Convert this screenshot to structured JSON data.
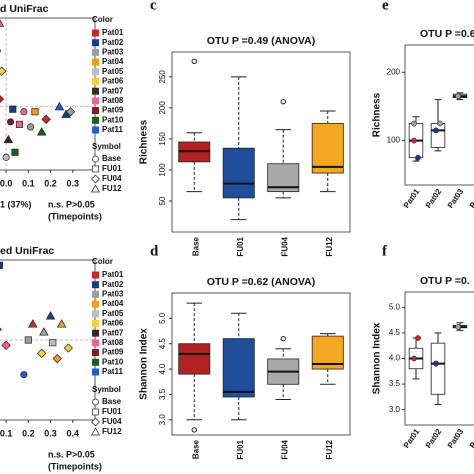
{
  "chart_data": [
    {
      "type": "scatter",
      "title": "d UniFrac",
      "xlabel": "1 (37%)",
      "annotations": [
        "n.s. P>0.05",
        "(Timepoints)"
      ],
      "xlim": [
        -0.05,
        0.4
      ],
      "ylim": [
        -0.25,
        0.35
      ],
      "xticks": [
        {
          "value": 0,
          "label": "0.0"
        },
        0.1,
        0.2,
        0.3
      ],
      "reference_lines": true,
      "color_legend": {
        "title": "Color",
        "entries": [
          {
            "name": "Pat01",
            "color": "#c62828"
          },
          {
            "name": "Pat02",
            "color": "#1a3a8f"
          },
          {
            "name": "Pat03",
            "color": "#9e9e9e"
          },
          {
            "name": "Pat04",
            "color": "#f39c12"
          },
          {
            "name": "Pat05",
            "color": "#bdbdbd"
          },
          {
            "name": "Pat06",
            "color": "#f4d03f"
          },
          {
            "name": "Pat07",
            "color": "#3e2723"
          },
          {
            "name": "Pat08",
            "color": "#f06292"
          },
          {
            "name": "Pat09",
            "color": "#7b1f1f"
          },
          {
            "name": "Pat10",
            "color": "#1b5e20"
          },
          {
            "name": "Pat11",
            "color": "#1e5fd8"
          }
        ]
      },
      "symbol_legend": {
        "title": "Symbol",
        "entries": [
          {
            "name": "Base",
            "symbol": "circle"
          },
          {
            "name": "FU01",
            "symbol": "square"
          },
          {
            "name": "FU04",
            "symbol": "diamond"
          },
          {
            "name": "FU12",
            "symbol": "triangle"
          }
        ]
      },
      "points": [
        {
          "x": -0.03,
          "y": 0.33,
          "color": "#f06292",
          "symbol": "triangle"
        },
        {
          "x": -0.04,
          "y": 0.22,
          "color": "#1e5fd8",
          "symbol": "circle"
        },
        {
          "x": -0.02,
          "y": 0.14,
          "color": "#f4d03f",
          "symbol": "diamond"
        },
        {
          "x": -0.03,
          "y": 0.03,
          "color": "#c62828",
          "symbol": "diamond"
        },
        {
          "x": 0.03,
          "y": -0.01,
          "color": "#1a3a8f",
          "symbol": "square"
        },
        {
          "x": 0.08,
          "y": -0.02,
          "color": "#f06292",
          "symbol": "circle"
        },
        {
          "x": 0.13,
          "y": -0.02,
          "color": "#f39c12",
          "symbol": "square"
        },
        {
          "x": 0.24,
          "y": 0.0,
          "color": "#1e5fd8",
          "symbol": "triangle"
        },
        {
          "x": 0.27,
          "y": -0.03,
          "color": "#1a3a8f",
          "symbol": "triangle"
        },
        {
          "x": 0.29,
          "y": -0.02,
          "color": "#9e9e9e",
          "symbol": "diamond"
        },
        {
          "x": 0.18,
          "y": -0.05,
          "color": "#c62828",
          "symbol": "diamond"
        },
        {
          "x": 0.02,
          "y": -0.06,
          "color": "#7b1f1f",
          "symbol": "circle"
        },
        {
          "x": 0.06,
          "y": -0.07,
          "color": "#f06292",
          "symbol": "square"
        },
        {
          "x": 0.11,
          "y": -0.08,
          "color": "#9e9e9e",
          "symbol": "circle"
        },
        {
          "x": 0.16,
          "y": -0.1,
          "color": "#1b5e20",
          "symbol": "triangle"
        },
        {
          "x": 0.01,
          "y": -0.13,
          "color": "#3e2723",
          "symbol": "triangle"
        },
        {
          "x": 0.04,
          "y": -0.18,
          "color": "#1b5e20",
          "symbol": "square"
        },
        {
          "x": 0.0,
          "y": -0.2,
          "color": "#bdbdbd",
          "symbol": "circle"
        }
      ]
    },
    {
      "type": "scatter",
      "title": "ed UniFrac",
      "annotations": [
        "n.s. P>0.05",
        "(Timepoints)"
      ],
      "xlim": [
        0.05,
        0.5
      ],
      "ylim": [
        -0.3,
        0.3
      ],
      "xticks": [
        0.1,
        0.2,
        0.3,
        0.4
      ],
      "reference_lines": true,
      "color_legend": {
        "title": "Color",
        "entries": [
          {
            "name": "Pat01",
            "color": "#c62828"
          },
          {
            "name": "Pat02",
            "color": "#1a3a8f"
          },
          {
            "name": "Pat03",
            "color": "#9e9e9e"
          },
          {
            "name": "Pat04",
            "color": "#f39c12"
          },
          {
            "name": "Pat05",
            "color": "#bdbdbd"
          },
          {
            "name": "Pat06",
            "color": "#f4d03f"
          },
          {
            "name": "Pat07",
            "color": "#3e2723"
          },
          {
            "name": "Pat08",
            "color": "#f06292"
          },
          {
            "name": "Pat09",
            "color": "#7b1f1f"
          },
          {
            "name": "Pat10",
            "color": "#1b5e20"
          },
          {
            "name": "Pat11",
            "color": "#1e5fd8"
          }
        ]
      },
      "symbol_legend": {
        "title": "Symbol",
        "entries": [
          {
            "name": "Base",
            "symbol": "circle"
          },
          {
            "name": "FU01",
            "symbol": "square"
          },
          {
            "name": "FU04",
            "symbol": "diamond"
          },
          {
            "name": "FU12",
            "symbol": "triangle"
          }
        ]
      },
      "points": [
        {
          "x": 0.07,
          "y": 0.28,
          "color": "#1a3a8f",
          "symbol": "square"
        },
        {
          "x": 0.3,
          "y": 0.09,
          "color": "#1a3a8f",
          "symbol": "triangle"
        },
        {
          "x": 0.22,
          "y": 0.06,
          "color": "#c62828",
          "symbol": "triangle"
        },
        {
          "x": 0.35,
          "y": 0.06,
          "color": "#f39c12",
          "symbol": "triangle"
        },
        {
          "x": 0.06,
          "y": 0.04,
          "color": "#c62828",
          "symbol": "diamond"
        },
        {
          "x": 0.27,
          "y": 0.03,
          "color": "#9e9e9e",
          "symbol": "triangle"
        },
        {
          "x": 0.2,
          "y": 0.0,
          "color": "#9e9e9e",
          "symbol": "square"
        },
        {
          "x": 0.31,
          "y": -0.01,
          "color": "#bdbdbd",
          "symbol": "square"
        },
        {
          "x": 0.38,
          "y": -0.03,
          "color": "#f4d03f",
          "symbol": "diamond"
        },
        {
          "x": 0.26,
          "y": -0.05,
          "color": "#f4d03f",
          "symbol": "diamond"
        },
        {
          "x": 0.1,
          "y": -0.02,
          "color": "#f06292",
          "symbol": "diamond"
        },
        {
          "x": 0.33,
          "y": -0.07,
          "color": "#f39c12",
          "symbol": "diamond"
        },
        {
          "x": 0.18,
          "y": -0.13,
          "color": "#1e5fd8",
          "symbol": "circle"
        }
      ]
    },
    {
      "type": "boxplot",
      "label": "c",
      "title": "OTU P =0.49 (ANOVA)",
      "ylabel": "Richness",
      "categories": [
        "Base",
        "FU01",
        "FU04",
        "FU12"
      ],
      "ylim": [
        0,
        290
      ],
      "yticks": [
        50,
        100,
        150,
        200,
        250
      ],
      "boxes": [
        {
          "min": 65,
          "q1": 113,
          "median": 130,
          "q3": 145,
          "max": 160,
          "outliers": [
            275
          ],
          "color": "#b22222"
        },
        {
          "min": 20,
          "q1": 55,
          "median": 78,
          "q3": 135,
          "max": 250,
          "outliers": [],
          "color": "#1f4e9c"
        },
        {
          "min": 55,
          "q1": 65,
          "median": 72,
          "q3": 110,
          "max": 165,
          "outliers": [
            210
          ],
          "color": "#a9a9a9"
        },
        {
          "min": 65,
          "q1": 95,
          "median": 105,
          "q3": 175,
          "max": 195,
          "outliers": [],
          "color": "#f5a623"
        }
      ]
    },
    {
      "type": "boxplot",
      "label": "d",
      "title": "OTU P =0.62 (ANOVA)",
      "ylabel": "Shannon Index",
      "categories": [
        "Base",
        "FU01",
        "FU04",
        "FU12"
      ],
      "ylim": [
        2.7,
        5.5
      ],
      "yticks": [
        {
          "value": 3,
          "label": "3.0"
        },
        3.5,
        {
          "value": 4,
          "label": "4.0"
        },
        4.5,
        {
          "value": 5,
          "label": "5.0"
        }
      ],
      "boxes": [
        {
          "min": 3.0,
          "q1": 3.9,
          "median": 4.3,
          "q3": 4.5,
          "max": 5.3,
          "outliers": [
            2.8
          ],
          "color": "#b22222"
        },
        {
          "min": 3.0,
          "q1": 3.45,
          "median": 3.55,
          "q3": 4.6,
          "max": 5.1,
          "outliers": [],
          "color": "#1f4e9c"
        },
        {
          "min": 3.4,
          "q1": 3.7,
          "median": 3.95,
          "q3": 4.2,
          "max": 4.4,
          "outliers": [
            4.6
          ],
          "color": "#a9a9a9"
        },
        {
          "min": 3.7,
          "q1": 4.0,
          "median": 4.1,
          "q3": 4.65,
          "max": 4.7,
          "outliers": [],
          "color": "#f5a623"
        }
      ]
    },
    {
      "type": "boxplot",
      "label": "e",
      "title": "OTU P =0.6",
      "ylabel": "Richness",
      "categories": [
        "Pat01",
        "Pat02",
        "Pat03",
        "Pat04"
      ],
      "ylim": [
        35,
        240
      ],
      "yticks": [
        100,
        200
      ],
      "boxes": [
        {
          "min": 70,
          "q1": 75,
          "median": 100,
          "q3": 125,
          "max": 135,
          "outliers": [],
          "color": "#ffffff",
          "points": [
            {
              "value": 100,
              "color": "#c62828"
            },
            {
              "value": 75,
              "color": "#1a3a8f"
            },
            {
              "value": 125,
              "color": "#9e9e9e"
            }
          ]
        },
        {
          "min": 85,
          "q1": 90,
          "median": 115,
          "q3": 125,
          "max": 160,
          "outliers": [],
          "color": "#ffffff",
          "points": [
            {
              "value": 115,
              "color": "#1a3a8f"
            },
            {
              "value": 125,
              "color": "#9e9e9e"
            }
          ]
        },
        {
          "min": 160,
          "q1": 163,
          "median": 165,
          "q3": 168,
          "max": 170,
          "outliers": [],
          "color": "#e0e0e0",
          "points": [
            {
              "value": 165,
              "color": "#9e9e9e"
            }
          ]
        },
        {
          "min": 60,
          "q1": 75,
          "median": 85,
          "q3": 110,
          "max": 120,
          "outliers": [],
          "color": "#ffffff",
          "points": [
            {
              "value": 85,
              "color": "#f39c12"
            },
            {
              "value": 110,
              "color": "#f39c12"
            }
          ]
        }
      ]
    },
    {
      "type": "boxplot",
      "label": "f",
      "title": "OTU P =0.",
      "ylabel": "Shannon Index",
      "categories": [
        "Pat01",
        "Pat02",
        "Pat03",
        "Pat04"
      ],
      "ylim": [
        2.7,
        5.3
      ],
      "yticks": [
        {
          "value": 3,
          "label": "3.0"
        },
        3.5,
        {
          "value": 4,
          "label": "4.0"
        },
        4.5,
        {
          "value": 5,
          "label": "5.0"
        }
      ],
      "boxes": [
        {
          "min": 3.6,
          "q1": 3.8,
          "median": 4.0,
          "q3": 4.2,
          "max": 4.4,
          "outliers": [],
          "color": "#ffffff",
          "points": [
            {
              "value": 4.0,
              "color": "#c62828"
            },
            {
              "value": 4.4,
              "color": "#c62828"
            }
          ]
        },
        {
          "min": 3.1,
          "q1": 3.3,
          "median": 3.9,
          "q3": 4.3,
          "max": 4.5,
          "outliers": [],
          "color": "#ffffff",
          "points": [
            {
              "value": 3.9,
              "color": "#1a3a8f"
            }
          ]
        },
        {
          "min": 4.55,
          "q1": 4.6,
          "median": 4.62,
          "q3": 4.65,
          "max": 4.7,
          "outliers": [],
          "color": "#e0e0e0",
          "points": [
            {
              "value": 4.62,
              "color": "#9e9e9e"
            }
          ]
        },
        {
          "min": 3.5,
          "q1": 3.7,
          "median": 4.0,
          "q3": 4.3,
          "max": 4.5,
          "outliers": [],
          "color": "#ffffff",
          "points": [
            {
              "value": 3.7,
              "color": "#f39c12"
            },
            {
              "value": 4.3,
              "color": "#f39c12"
            }
          ]
        }
      ]
    }
  ]
}
